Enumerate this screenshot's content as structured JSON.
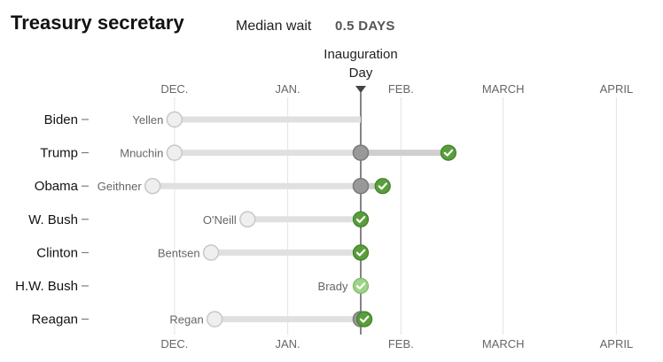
{
  "header": {
    "title": "Treasury secretary",
    "median_label": "Median wait",
    "median_value": "0.5 DAYS"
  },
  "inauguration_label": [
    "Inauguration",
    "Day"
  ],
  "chart_data": {
    "type": "dot-range",
    "x_axis": {
      "unit": "days relative to Inauguration Day",
      "range": [
        -78,
        75
      ],
      "ticks": [
        {
          "label": "DEC.",
          "value": -51
        },
        {
          "label": "JAN.",
          "value": -20
        },
        {
          "label": "FEB.",
          "value": 11
        },
        {
          "label": "MARCH",
          "value": 39
        },
        {
          "label": "APRIL",
          "value": 70
        }
      ]
    },
    "rows": [
      {
        "president": "Biden",
        "nominee": "Yellen",
        "announced": -51,
        "confirmed": null,
        "inaug_marker": false,
        "confirm_style": "none",
        "label_side": "before"
      },
      {
        "president": "Trump",
        "nominee": "Mnuchin",
        "announced": -51,
        "confirmed": 24,
        "inaug_marker": true,
        "confirm_style": "confirmed",
        "label_side": "before"
      },
      {
        "president": "Obama",
        "nominee": "Geithner",
        "announced": -57,
        "confirmed": 6,
        "inaug_marker": true,
        "confirm_style": "confirmed",
        "label_side": "before"
      },
      {
        "president": "W. Bush",
        "nominee": "O'Neill",
        "announced": -31,
        "confirmed": 0,
        "inaug_marker": false,
        "confirm_style": "confirmed",
        "label_side": "before"
      },
      {
        "president": "Clinton",
        "nominee": "Bentsen",
        "announced": -41,
        "confirmed": 0,
        "inaug_marker": false,
        "confirm_style": "confirmed",
        "label_side": "before"
      },
      {
        "president": "H.W. Bush",
        "nominee": "Brady",
        "announced": null,
        "confirmed": 0,
        "inaug_marker": false,
        "confirm_style": "holdover",
        "label_side": "before"
      },
      {
        "president": "Reagan",
        "nominee": "Regan",
        "announced": -40,
        "confirmed": 1,
        "inaug_marker": true,
        "confirm_style": "confirmed",
        "label_side": "before"
      }
    ]
  },
  "colors": {
    "grid": "#e3e3e3",
    "axis_line": "#333333",
    "bar": "#e0e0e0",
    "bar_after_inaug": "#cfcfcf",
    "announce_fill": "#efefef",
    "announce_stroke": "#c8c8c8",
    "inaug_fill": "#999999",
    "inaug_stroke": "#7a7a7a",
    "confirmed_fill": "#5a9e3c",
    "confirmed_stroke": "#3f7f26",
    "holdover_fill": "#9fd28a",
    "holdover_stroke": "#7cba63"
  }
}
